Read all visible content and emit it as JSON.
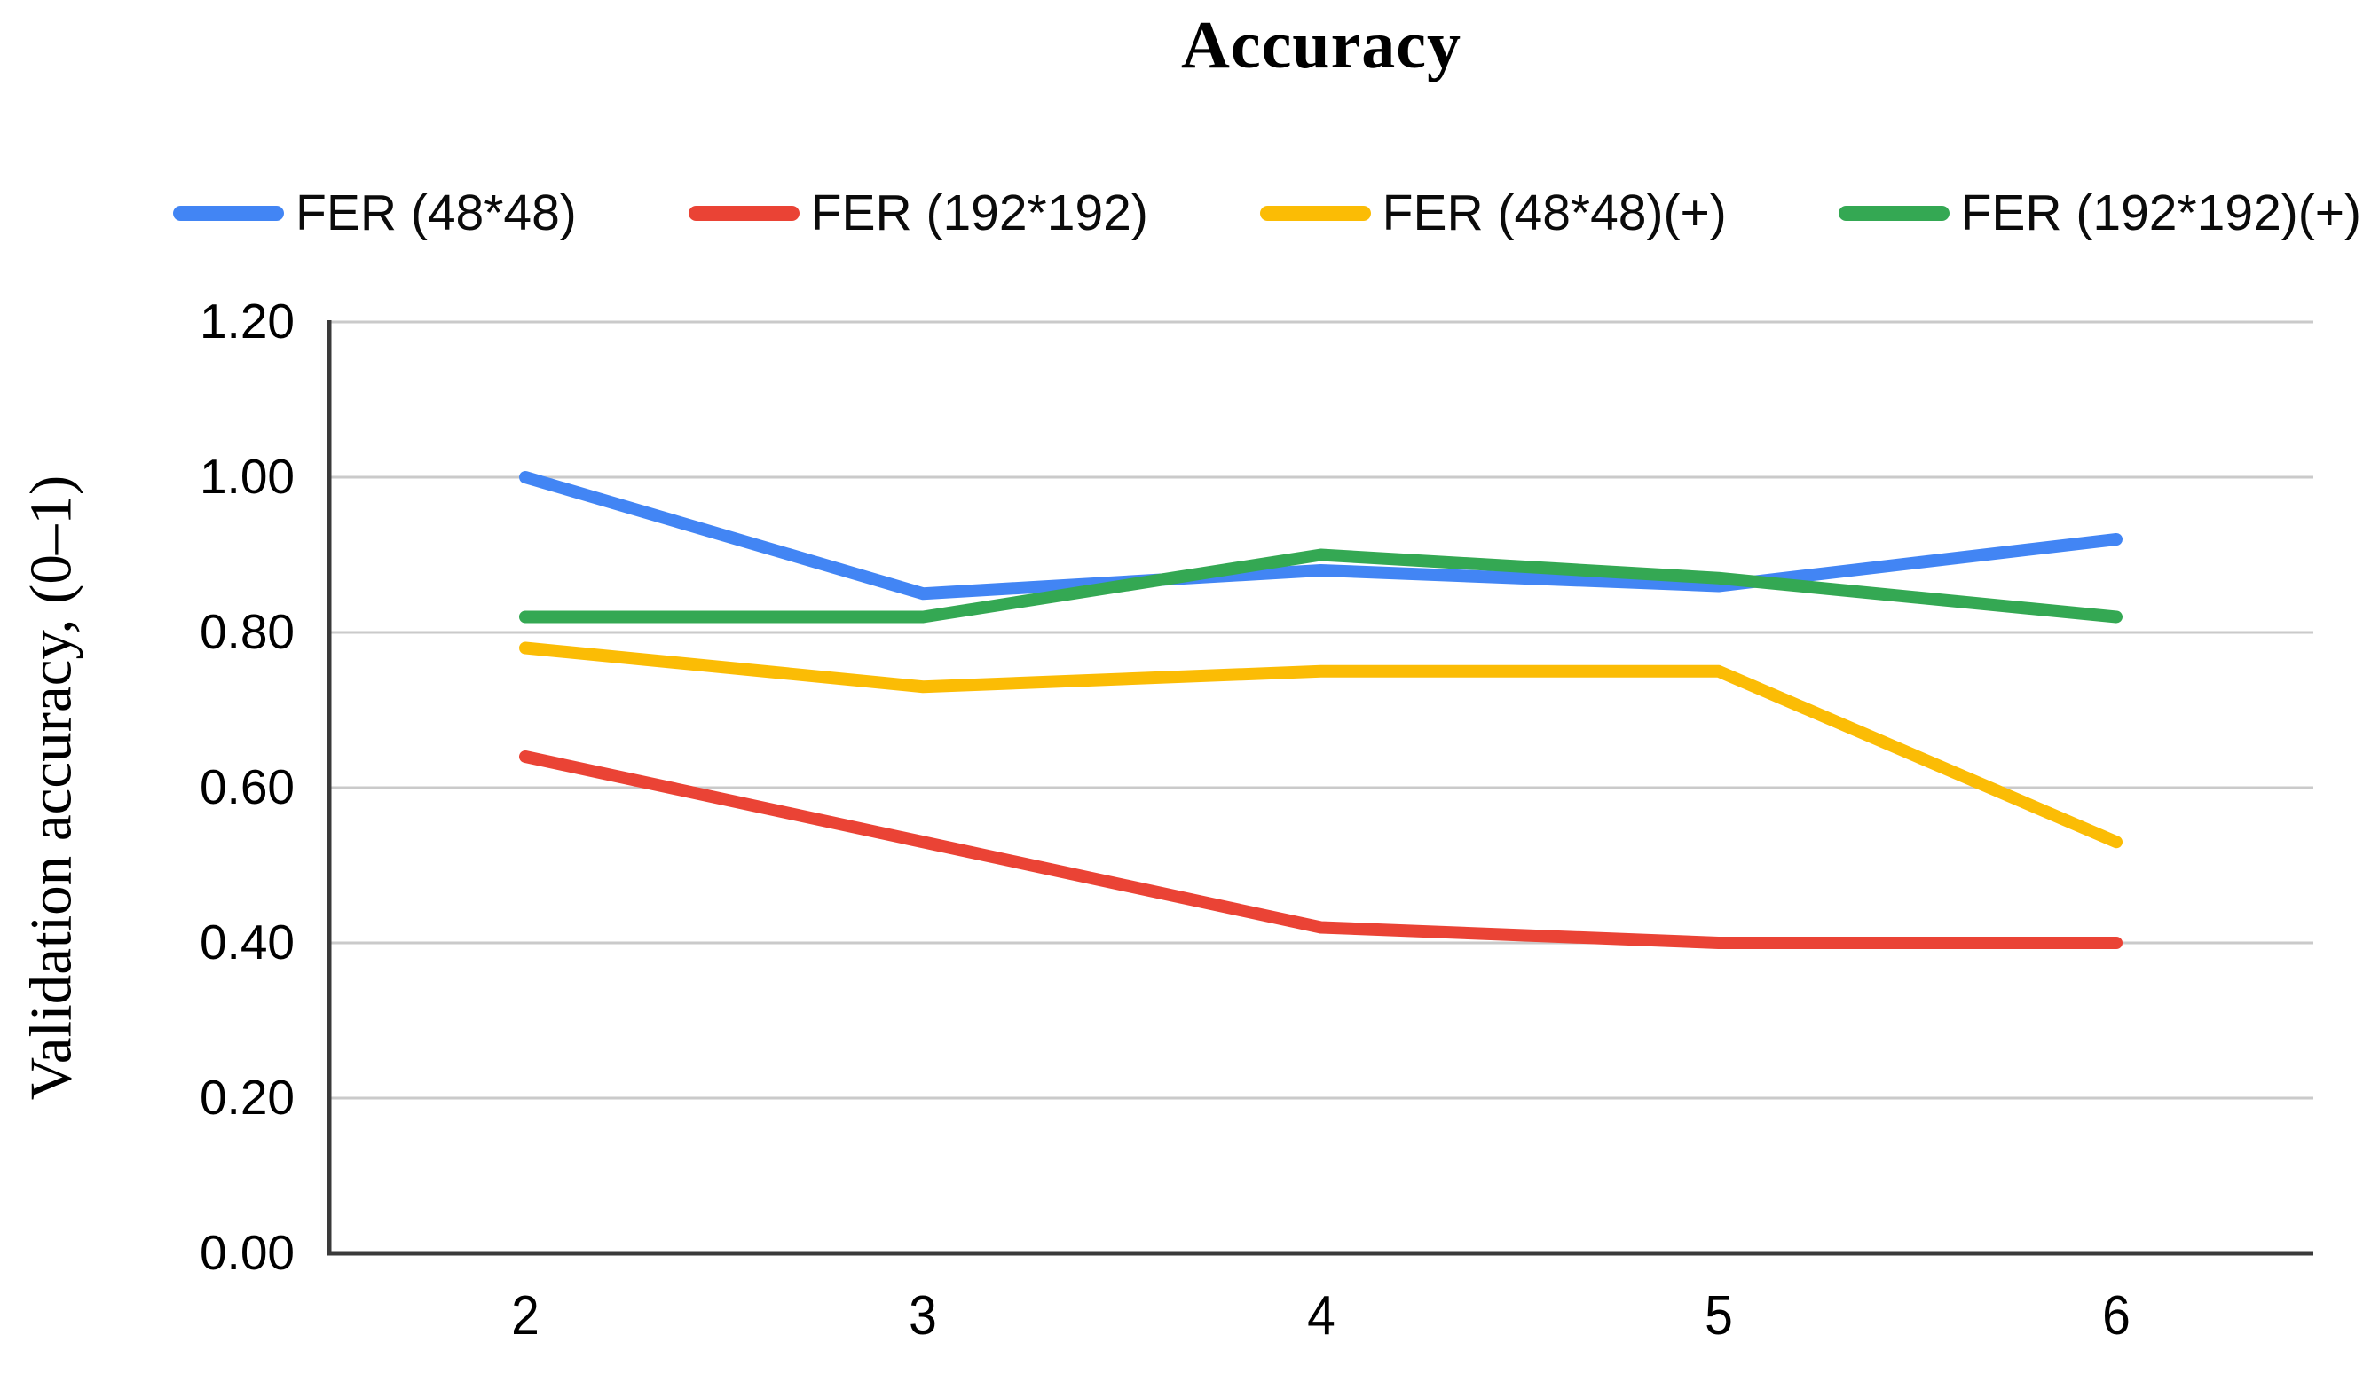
{
  "figure": {
    "background": "#ffffff"
  },
  "chart_data": {
    "type": "line",
    "title": "Accuracy",
    "xlabel": "",
    "ylabel": "Validation accuracy, (0–1)",
    "x": [
      2,
      3,
      4,
      5,
      6
    ],
    "series": [
      {
        "name": "FER (48*48)",
        "color": "#4285F4",
        "values": [
          1.0,
          0.85,
          0.88,
          0.86,
          0.92
        ]
      },
      {
        "name": "FER (192*192)",
        "color": "#EA4335",
        "values": [
          0.64,
          0.53,
          0.42,
          0.4,
          0.4
        ]
      },
      {
        "name": "FER (48*48)(+)",
        "color": "#FBBC05",
        "values": [
          0.78,
          0.73,
          0.75,
          0.75,
          0.53
        ]
      },
      {
        "name": "FER (192*192)(+)",
        "color": "#34A853",
        "values": [
          0.82,
          0.82,
          0.9,
          0.87,
          0.82
        ]
      }
    ],
    "ylim": [
      0.0,
      1.2
    ],
    "y_ticks": [
      "0.00",
      "0.20",
      "0.40",
      "0.60",
      "0.80",
      "1.00",
      "1.20"
    ],
    "grid": true,
    "legend_position": "top",
    "colors": {
      "grid": "#cacaca",
      "axis": "#3a3a3a",
      "text": "#000000"
    }
  }
}
